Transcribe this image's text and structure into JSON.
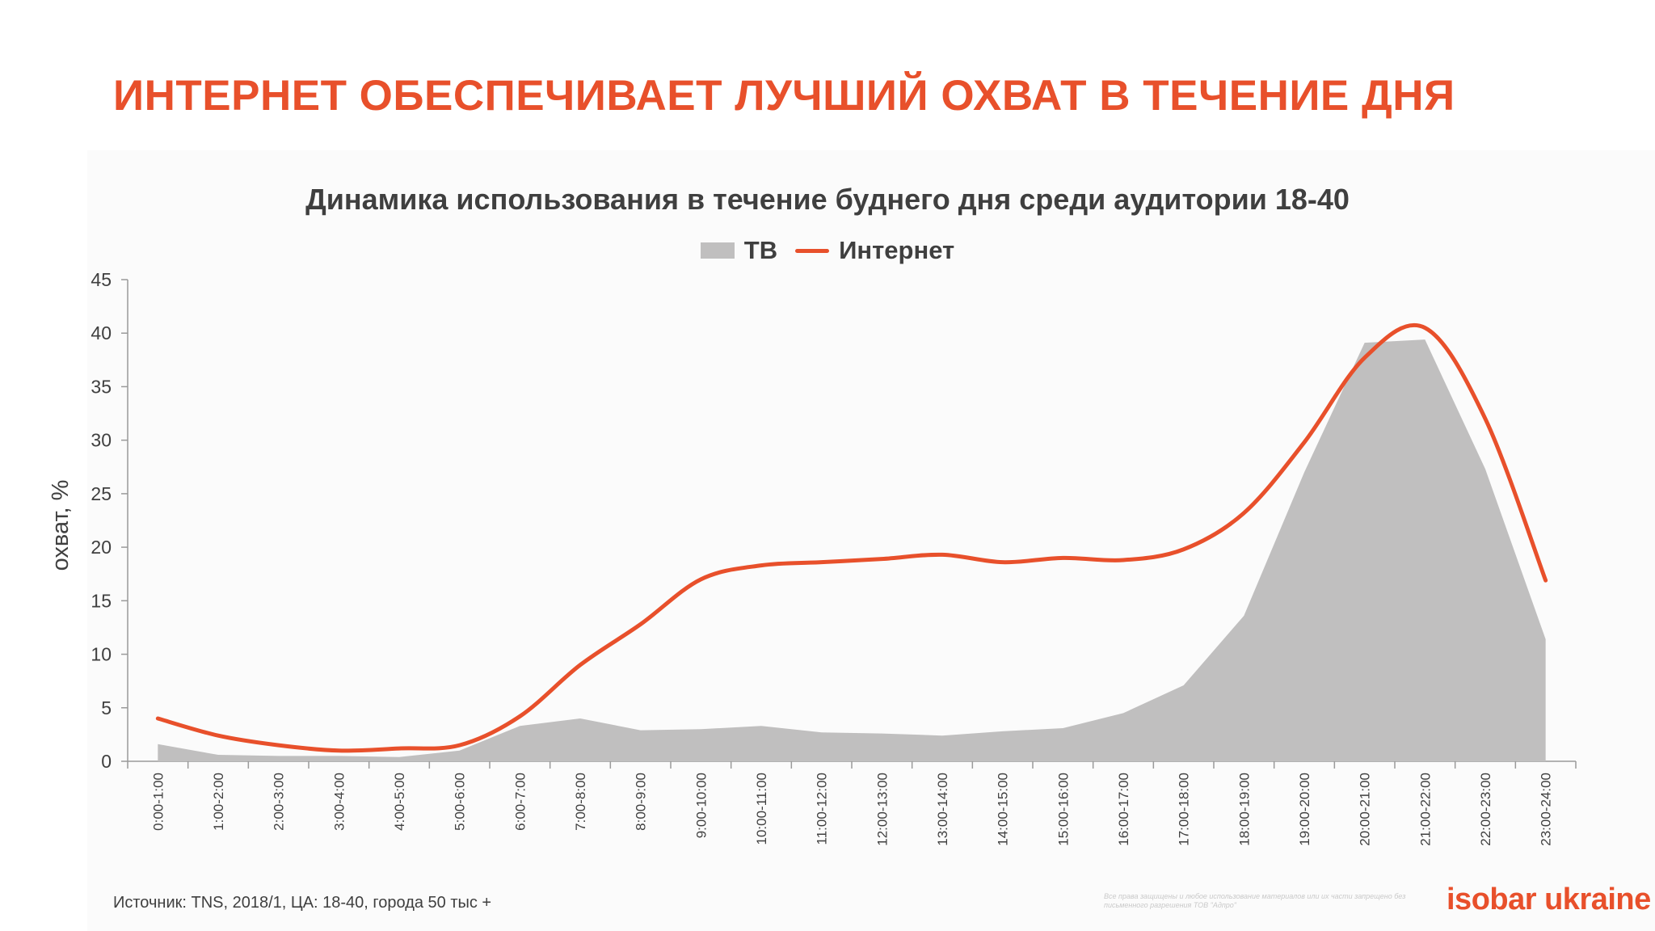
{
  "slide": {
    "title": "ИНТЕРНЕТ ОБЕСПЕЧИВАЕТ ЛУЧШИЙ ОХВАТ В ТЕЧЕНИЕ ДНЯ",
    "source": "Источник: TNS, 2018/1, ЦА: 18-40, города 50 тыс +",
    "rights": "Все права защищены и любое использование материалов или их части запрещено без письменного разрешения ТОВ \"Адпро\"",
    "logo": "isobar ukraine"
  },
  "colors": {
    "accent": "#e8502b",
    "tv_fill": "#c0bfbf",
    "text": "#3f3f3f"
  },
  "chart_data": {
    "type": "area",
    "title": "Динамика использования в течение буднего дня среди аудитории 18-40",
    "ylabel": "охват, %",
    "xlabel": "",
    "ylim": [
      0,
      45
    ],
    "yticks": [
      0,
      5,
      10,
      15,
      20,
      25,
      30,
      35,
      40,
      45
    ],
    "grid": false,
    "legend_position": "top-center",
    "categories": [
      "0:00-1:00",
      "1:00-2:00",
      "2:00-3:00",
      "3:00-4:00",
      "4:00-5:00",
      "5:00-6:00",
      "6:00-7:00",
      "7:00-8:00",
      "8:00-9:00",
      "9:00-10:00",
      "10:00-11:00",
      "11:00-12:00",
      "12:00-13:00",
      "13:00-14:00",
      "14:00-15:00",
      "15:00-16:00",
      "16:00-17:00",
      "17:00-18:00",
      "18:00-19:00",
      "19:00-20:00",
      "20:00-21:00",
      "21:00-22:00",
      "22:00-23:00",
      "23:00-24:00"
    ],
    "series": [
      {
        "name": "ТВ",
        "type": "area",
        "color": "#c0bfbf",
        "values": [
          1.6,
          0.6,
          0.5,
          0.5,
          0.4,
          1.0,
          3.3,
          4.0,
          2.9,
          3.0,
          3.3,
          2.7,
          2.6,
          2.4,
          2.8,
          3.1,
          4.5,
          7.1,
          13.6,
          27.0,
          39.1,
          39.4,
          27.3,
          11.4
        ]
      },
      {
        "name": "Интернет",
        "type": "line",
        "color": "#e8502b",
        "values": [
          4.0,
          2.4,
          1.5,
          1.0,
          1.2,
          1.5,
          4.2,
          9.0,
          12.8,
          17.0,
          18.3,
          18.6,
          18.9,
          19.3,
          18.6,
          19.0,
          18.8,
          19.8,
          23.2,
          29.8,
          37.7,
          40.5,
          32.0,
          16.9
        ]
      }
    ]
  }
}
